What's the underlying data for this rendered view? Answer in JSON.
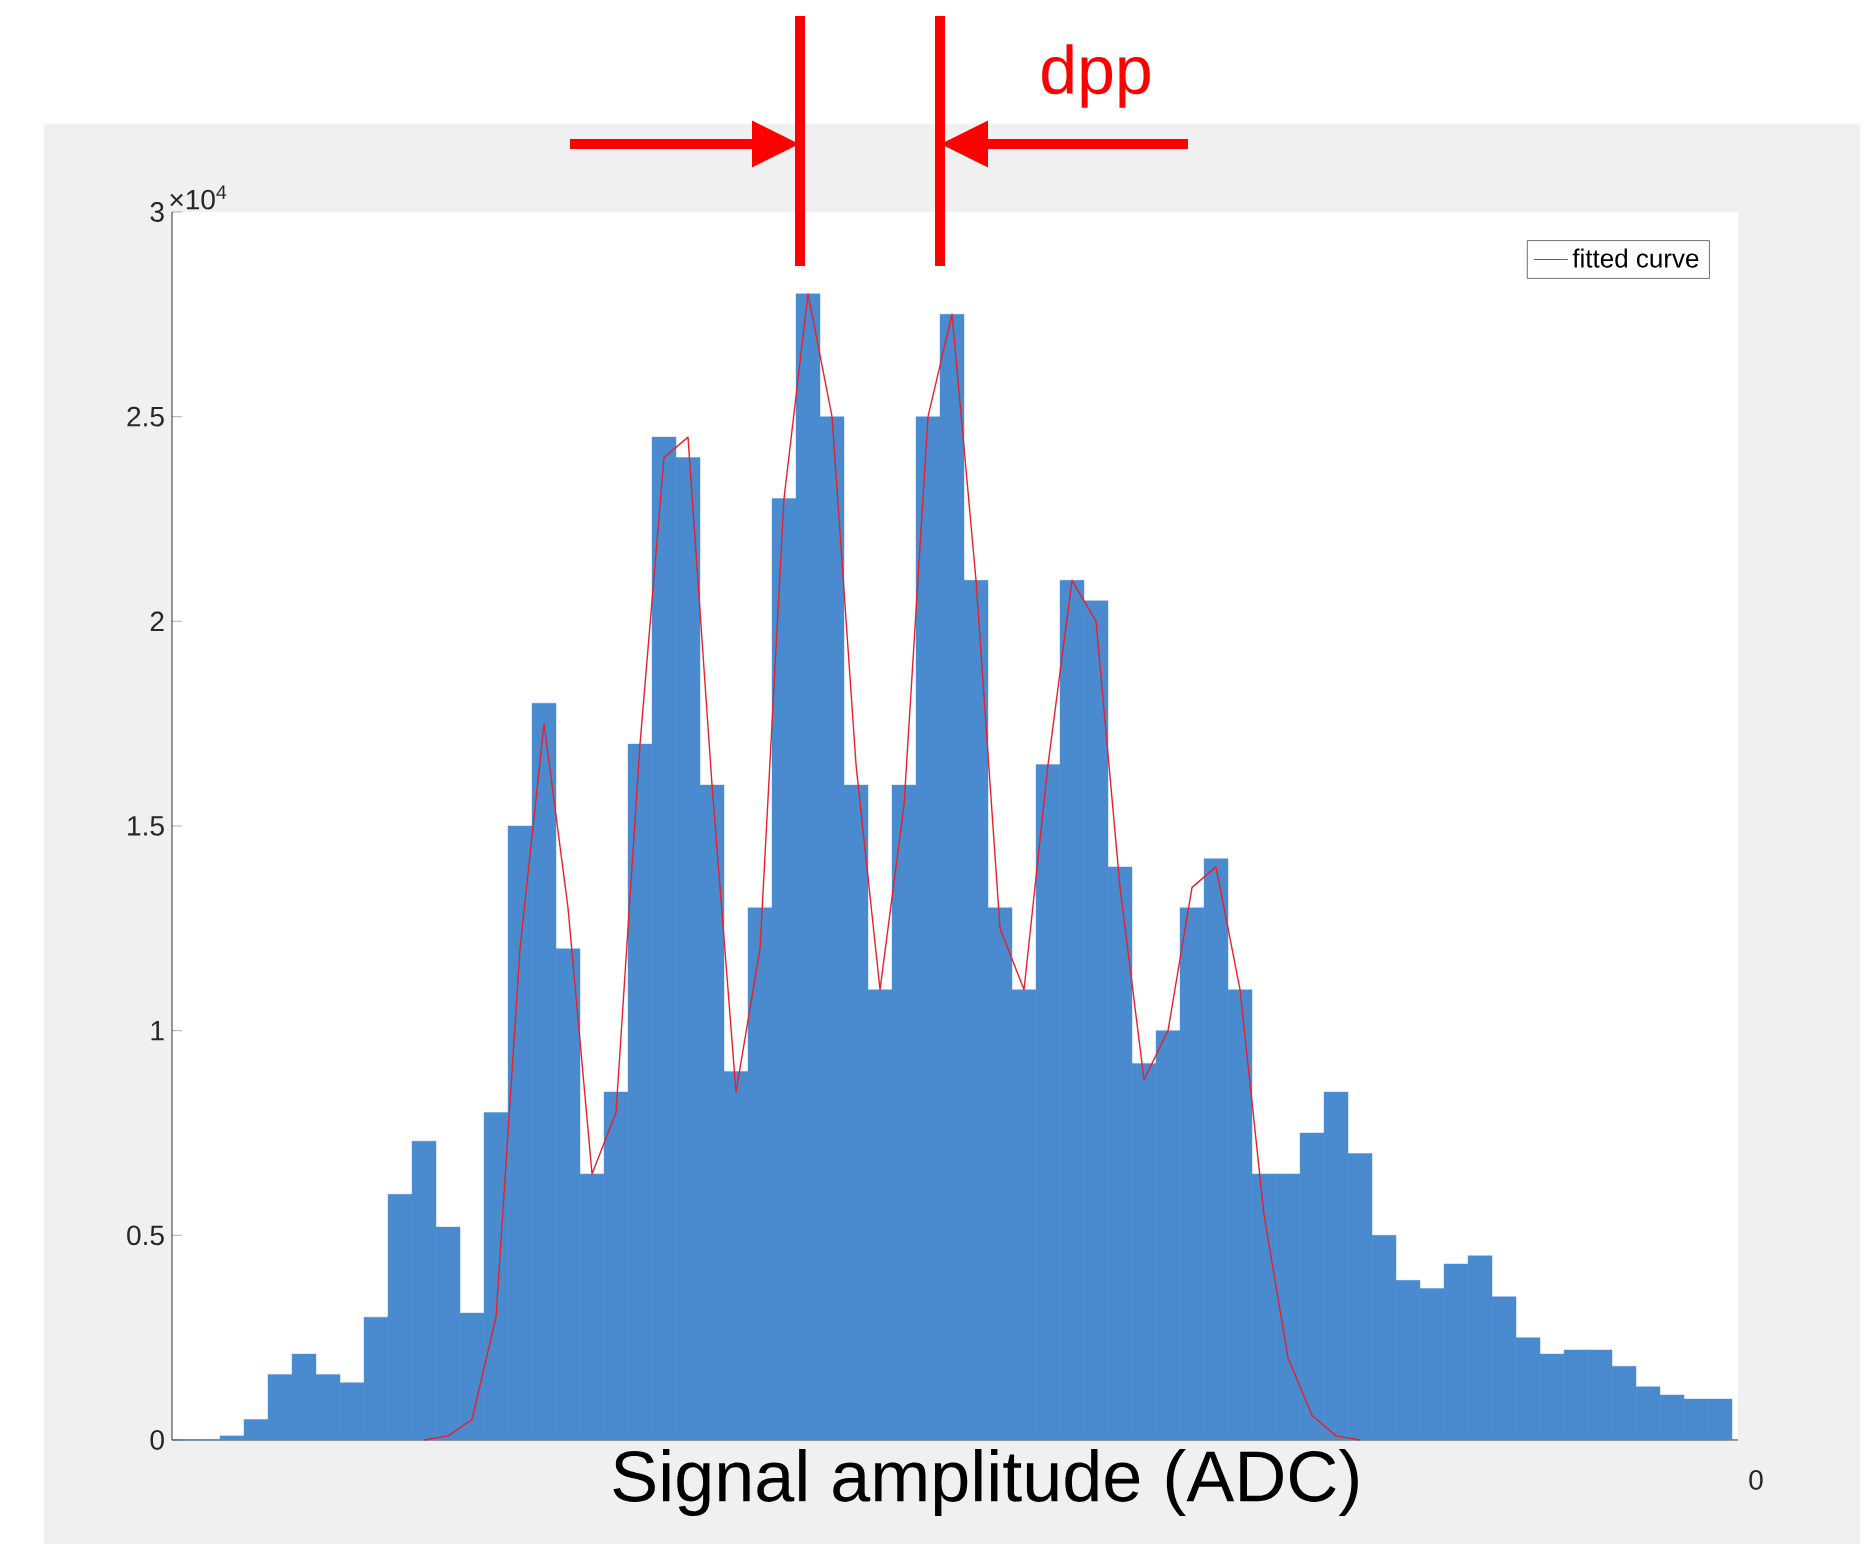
{
  "chart_data": {
    "type": "bar",
    "xlabel": "Signal amplitude (ADC)",
    "categories": [
      null,
      null,
      null,
      null,
      null,
      null,
      null,
      null,
      null,
      null,
      null,
      null,
      null,
      null,
      null,
      null,
      null,
      null,
      null,
      null,
      null,
      null,
      null,
      null,
      null,
      null,
      null,
      null,
      null,
      null,
      null,
      null,
      null,
      null,
      null,
      null,
      null,
      null,
      null,
      null,
      null,
      null,
      null,
      null,
      null,
      null,
      null,
      null,
      null,
      null,
      null,
      null,
      null,
      null,
      null,
      null,
      null,
      null,
      null,
      null,
      null,
      null,
      null,
      null,
      null
    ],
    "series": [
      {
        "color": "#4a8bd0",
        "values": [
          0,
          0,
          0.01,
          0.05,
          0.16,
          0.21,
          0.16,
          0.14,
          0.3,
          0.6,
          0.73,
          0.52,
          0.31,
          0.8,
          1.5,
          1.8,
          1.2,
          0.65,
          0.85,
          1.7,
          2.45,
          2.4,
          1.6,
          0.9,
          1.3,
          2.3,
          2.8,
          2.5,
          1.6,
          1.1,
          1.6,
          2.5,
          2.75,
          2.1,
          1.3,
          1.1,
          1.65,
          2.1,
          2.05,
          1.4,
          0.92,
          1.0,
          1.3,
          1.42,
          1.1,
          0.65,
          0.65,
          0.75,
          0.85,
          0.7,
          0.5,
          0.39,
          0.37,
          0.43,
          0.45,
          0.35,
          0.25,
          0.21,
          0.22,
          0.22,
          0.18,
          0.13,
          0.11,
          0.1,
          0.1
        ]
      },
      {
        "type": "line",
        "name": "fitted curve",
        "color": "#e8202a",
        "values": [
          null,
          null,
          null,
          null,
          null,
          null,
          null,
          null,
          null,
          null,
          0,
          0.01,
          0.05,
          0.3,
          1.2,
          1.75,
          1.3,
          0.65,
          0.8,
          1.7,
          2.4,
          2.45,
          1.6,
          0.85,
          1.2,
          2.3,
          2.8,
          2.5,
          1.65,
          1.1,
          1.55,
          2.5,
          2.75,
          2.1,
          1.25,
          1.1,
          1.65,
          2.1,
          2.0,
          1.35,
          0.88,
          1.0,
          1.35,
          1.4,
          1.1,
          0.55,
          0.2,
          0.06,
          0.01,
          0,
          null,
          null,
          null,
          null,
          null,
          null,
          null,
          null,
          null,
          null,
          null,
          null,
          null,
          null,
          null
        ]
      }
    ],
    "ylim": [
      0,
      3
    ],
    "yticks": [
      0,
      0.5,
      1,
      1.5,
      2,
      2.5,
      3
    ],
    "legend": "top right",
    "annotations": [
      "×10$^{4}$",
      "dpp",
      "0"
    ]
  }
}
